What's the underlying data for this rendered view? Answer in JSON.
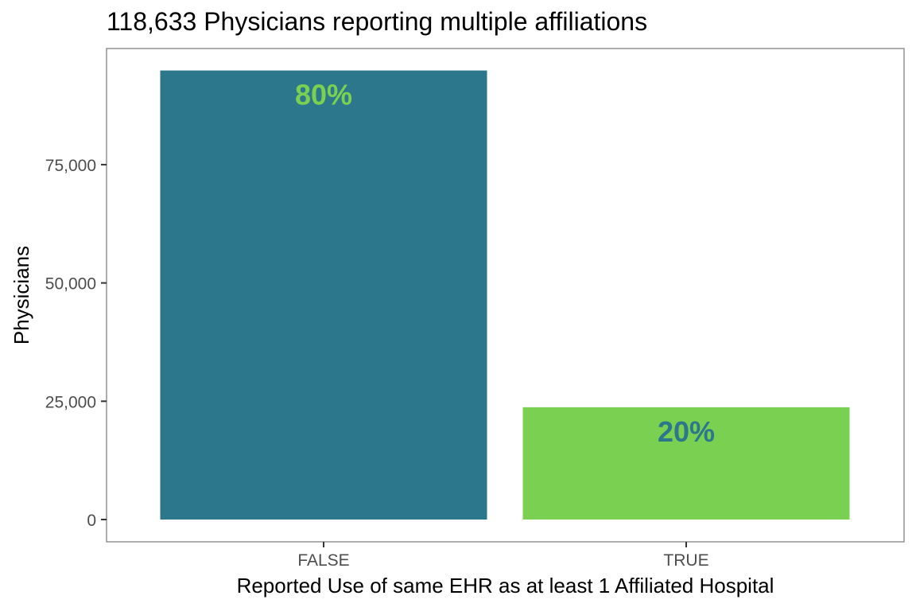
{
  "chart_data": {
    "type": "bar",
    "title": "118,633 Physicians reporting multiple affiliations",
    "xlabel": "Reported Use of same EHR as at least 1 Affiliated Hospital",
    "ylabel": "Physicians",
    "categories": [
      "FALSE",
      "TRUE"
    ],
    "values": [
      94900,
      23733
    ],
    "data_labels": [
      "80%",
      "20%"
    ],
    "bar_colors": [
      "#2C778C",
      "#7AD151"
    ],
    "label_colors": [
      "#7AD151",
      "#2C778C"
    ],
    "ylim": [
      0,
      95000
    ],
    "yticks": [
      0,
      25000,
      50000,
      75000
    ],
    "ytick_labels": [
      "0",
      "25,000",
      "50,000",
      "75,000"
    ],
    "grid": false,
    "legend": "none"
  }
}
